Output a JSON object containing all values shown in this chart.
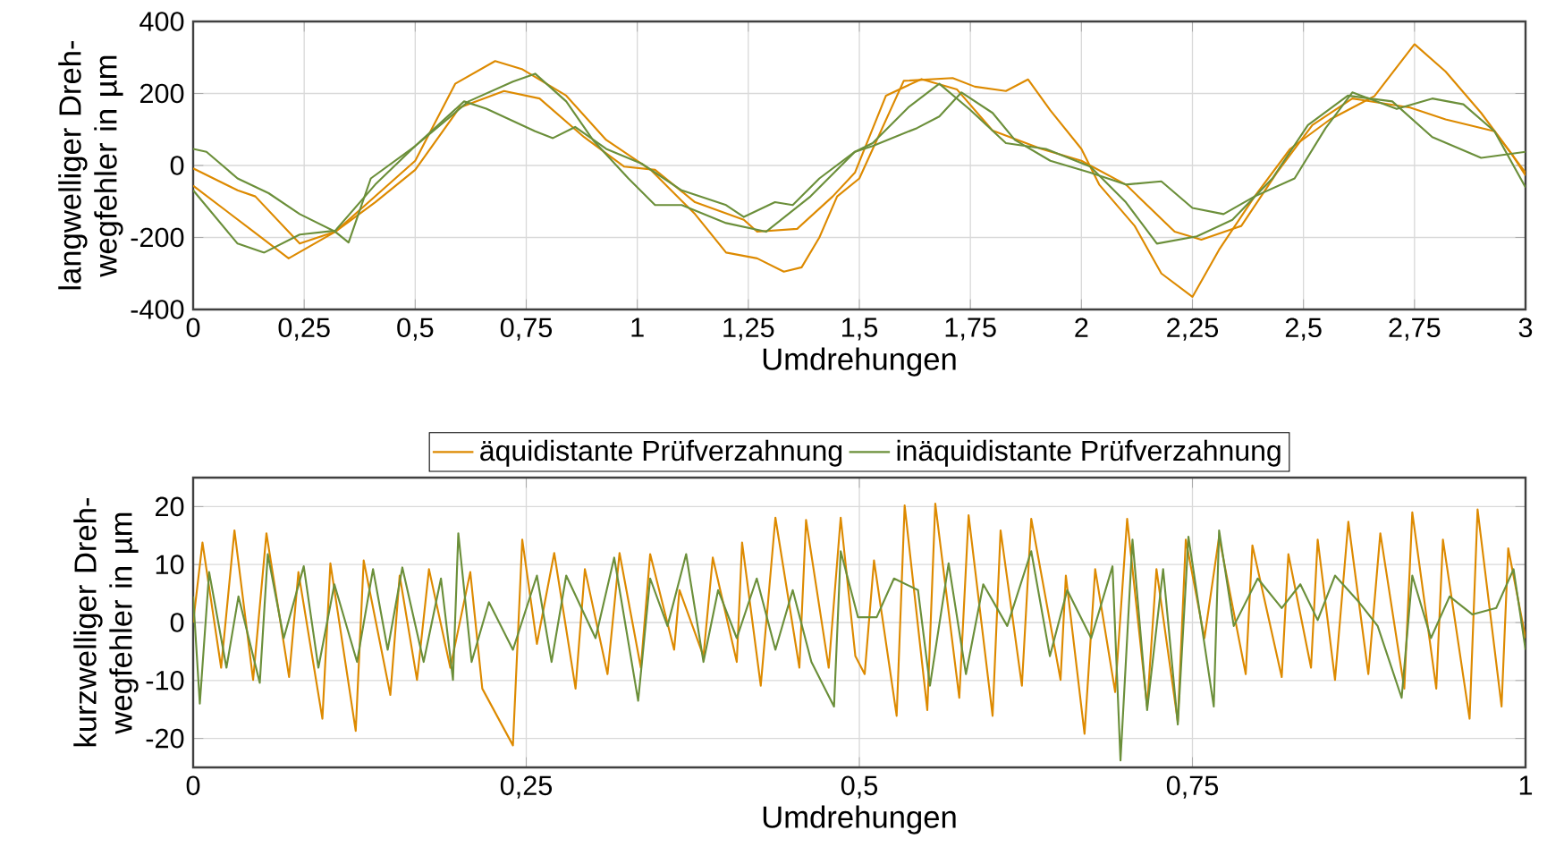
{
  "chart_data": [
    {
      "type": "line",
      "xlabel": "Umdrehungen",
      "ylabel": "langwelliger Dreh-wegfehler in µm",
      "xlim": [
        0,
        3
      ],
      "ylim": [
        -400,
        400
      ],
      "xticks": [
        0,
        {
          "value": 0.25,
          "label": "0,25"
        },
        {
          "value": 0.5,
          "label": "0,5"
        },
        {
          "value": 0.75,
          "label": "0,75"
        },
        1,
        {
          "value": 1.25,
          "label": "1,25"
        },
        {
          "value": 1.5,
          "label": "1,5"
        },
        {
          "value": 1.75,
          "label": "1,75"
        },
        2,
        {
          "value": 2.25,
          "label": "2,25"
        },
        {
          "value": 2.5,
          "label": "2,5"
        },
        {
          "value": 2.75,
          "label": "2,75"
        },
        3
      ],
      "yticks": [
        -400,
        -200,
        0,
        200,
        400
      ],
      "grid": true,
      "legend": false,
      "series": [
        {
          "color": "#dd8a00",
          "x": [
            0,
            0.215,
            0.32,
            0.5,
            0.59,
            0.68,
            0.74,
            0.84,
            0.93,
            1.03,
            1.13,
            1.2,
            1.27,
            1.33,
            1.37,
            1.41,
            1.45,
            1.5,
            1.6,
            1.71,
            1.76,
            1.83,
            1.88,
            1.93,
            2.0,
            2.04,
            2.12,
            2.18,
            2.25,
            2.31,
            2.39,
            2.47,
            2.56,
            2.66,
            2.75,
            2.82,
            2.9,
            2.97,
            3.0
          ],
          "values": [
            -56,
            -258,
            -184,
            13,
            227,
            290,
            268,
            194,
            71,
            -12,
            -135,
            -242,
            -258,
            -295,
            -283,
            -200,
            -86,
            -36,
            235,
            243,
            219,
            207,
            239,
            153,
            46,
            -53,
            -168,
            -300,
            -365,
            -234,
            -86,
            46,
            128,
            193,
            337,
            261,
            146,
            30,
            -28
          ]
        },
        {
          "color": "#dd8a00",
          "x": [
            0,
            0.1,
            0.14,
            0.24,
            0.32,
            0.41,
            0.5,
            0.6,
            0.7,
            0.78,
            0.88,
            0.97,
            1.04,
            1.13,
            1.24,
            1.27,
            1.36,
            1.44,
            1.49,
            1.56,
            1.64,
            1.72,
            1.8,
            1.91,
            2.0,
            2.1,
            2.21,
            2.27,
            2.36,
            2.44,
            2.52,
            2.61,
            2.74,
            2.82,
            2.93,
            3.0
          ],
          "values": [
            -8,
            -69,
            -86,
            -217,
            -184,
            -102,
            -12,
            161,
            207,
            186,
            79,
            -3,
            -12,
            -102,
            -151,
            -184,
            -176,
            -86,
            -20,
            194,
            240,
            211,
            97,
            46,
            13,
            -53,
            -184,
            -206,
            -168,
            -20,
            112,
            186,
            161,
            128,
            95,
            -20
          ]
        },
        {
          "color": "#6b8f3a",
          "x": [
            0,
            0.03,
            0.1,
            0.17,
            0.24,
            0.32,
            0.35,
            0.4,
            0.5,
            0.61,
            0.66,
            0.77,
            0.81,
            0.86,
            0.93,
            1.01,
            1.1,
            1.2,
            1.24,
            1.31,
            1.35,
            1.41,
            1.49,
            1.53,
            1.63,
            1.68,
            1.73,
            1.8,
            1.85,
            1.93,
            2.02,
            2.1,
            2.18,
            2.25,
            2.32,
            2.39,
            2.48,
            2.55,
            2.61,
            2.71,
            2.79,
            2.86,
            2.93,
            3.0
          ],
          "values": [
            46,
            38,
            -36,
            -77,
            -135,
            -184,
            -214,
            -36,
            54,
            178,
            158,
            95,
            76,
            107,
            46,
            5,
            -69,
            -110,
            -143,
            -102,
            -110,
            -36,
            38,
            54,
            104,
            136,
            203,
            146,
            71,
            13,
            -20,
            -53,
            -44,
            -118,
            -135,
            -86,
            -36,
            104,
            203,
            157,
            186,
            170,
            95,
            -61
          ]
        },
        {
          "color": "#6b8f3a",
          "x": [
            0,
            0.1,
            0.16,
            0.24,
            0.32,
            0.41,
            0.5,
            0.62,
            0.72,
            0.77,
            0.84,
            0.9,
            0.98,
            1.04,
            1.1,
            1.2,
            1.29,
            1.39,
            1.49,
            1.53,
            1.61,
            1.68,
            1.75,
            1.83,
            1.92,
            2.02,
            2.1,
            2.17,
            2.26,
            2.34,
            2.43,
            2.51,
            2.6,
            2.7,
            2.79,
            2.9,
            3.0
          ],
          "values": [
            -69,
            -217,
            -242,
            -192,
            -181,
            -53,
            54,
            178,
            233,
            255,
            178,
            71,
            -36,
            -110,
            -110,
            -160,
            -184,
            -86,
            38,
            62,
            161,
            227,
            154,
            62,
            46,
            -3,
            -102,
            -217,
            -197,
            -151,
            -36,
            112,
            194,
            178,
            79,
            21,
            38
          ]
        }
      ]
    },
    {
      "type": "line",
      "xlabel": "Umdrehungen",
      "ylabel": "kurzwelliger Dreh-wegfehler in µm",
      "xlim": [
        0,
        1
      ],
      "ylim": [
        -25,
        25
      ],
      "xticks": [
        0,
        {
          "value": 0.25,
          "label": "0,25"
        },
        {
          "value": 0.5,
          "label": "0,5"
        },
        {
          "value": 0.75,
          "label": "0,75"
        },
        1
      ],
      "yticks": [
        -20,
        -10,
        0,
        10,
        20
      ],
      "grid": true,
      "legend": "top",
      "series": [
        {
          "name": "äquidistante Prüfverzahnung",
          "color": "#dd8a00",
          "x": [
            0,
            0.007,
            0.021,
            0.031,
            0.045,
            0.055,
            0.072,
            0.079,
            0.097,
            0.103,
            0.122,
            0.128,
            0.148,
            0.155,
            0.168,
            0.177,
            0.193,
            0.208,
            0.217,
            0.24,
            0.247,
            0.258,
            0.271,
            0.287,
            0.294,
            0.311,
            0.32,
            0.336,
            0.343,
            0.361,
            0.365,
            0.383,
            0.39,
            0.408,
            0.412,
            0.426,
            0.437,
            0.455,
            0.46,
            0.477,
            0.486,
            0.497,
            0.504,
            0.511,
            0.528,
            0.534,
            0.551,
            0.557,
            0.575,
            0.582,
            0.6,
            0.606,
            0.622,
            0.629,
            0.651,
            0.655,
            0.669,
            0.677,
            0.692,
            0.701,
            0.716,
            0.723,
            0.739,
            0.745,
            0.759,
            0.77,
            0.79,
            0.795,
            0.817,
            0.822,
            0.839,
            0.844,
            0.857,
            0.867,
            0.882,
            0.891,
            0.909,
            0.915,
            0.933,
            0.938,
            0.958,
            0.964,
            0.982,
            0.987,
            1.0
          ],
          "values": [
            0,
            13.8,
            -7.8,
            15.9,
            -9.9,
            15.4,
            -9.4,
            8.7,
            -16.6,
            10.2,
            -18.7,
            10.7,
            -12.5,
            8.1,
            -9.9,
            9.2,
            -7.8,
            8.7,
            -11.4,
            -21.2,
            14.3,
            -3.7,
            12,
            -11.4,
            9.2,
            -8.9,
            12,
            -7.8,
            11.8,
            -4.7,
            5.6,
            -5.8,
            11.2,
            -6.8,
            13.8,
            -10.9,
            18.1,
            -7.8,
            17.7,
            -7.8,
            18.1,
            -5.8,
            -8.9,
            10.7,
            -16.1,
            20.2,
            -15.1,
            20.5,
            -13,
            18.5,
            -16.1,
            15.9,
            -10.9,
            17.9,
            -9.9,
            8.1,
            -19.2,
            9.2,
            -12,
            17.9,
            -14.5,
            9.2,
            -17.1,
            14.3,
            -2.7,
            14.8,
            -8.9,
            13.3,
            -9.4,
            11.8,
            -7.8,
            14.3,
            -9.9,
            17.4,
            -8.9,
            15.4,
            -11.4,
            19,
            -11.4,
            14.3,
            -16.6,
            19.5,
            -14.5,
            12.8,
            -2.7
          ]
        },
        {
          "name": "inäquidistante Prüfverzahnung",
          "color": "#6b8f3a",
          "x": [
            0,
            0.005,
            0.012,
            0.025,
            0.034,
            0.05,
            0.056,
            0.068,
            0.083,
            0.094,
            0.106,
            0.123,
            0.135,
            0.146,
            0.157,
            0.173,
            0.186,
            0.195,
            0.199,
            0.209,
            0.222,
            0.24,
            0.258,
            0.269,
            0.28,
            0.302,
            0.316,
            0.334,
            0.343,
            0.356,
            0.37,
            0.383,
            0.394,
            0.408,
            0.423,
            0.437,
            0.45,
            0.464,
            0.481,
            0.486,
            0.499,
            0.513,
            0.526,
            0.544,
            0.553,
            0.567,
            0.58,
            0.593,
            0.611,
            0.629,
            0.643,
            0.656,
            0.674,
            0.69,
            0.696,
            0.705,
            0.716,
            0.728,
            0.739,
            0.747,
            0.766,
            0.77,
            0.781,
            0.799,
            0.817,
            0.831,
            0.844,
            0.857,
            0.875,
            0.889,
            0.907,
            0.915,
            0.929,
            0.943,
            0.96,
            0.978,
            0.991,
            1.0
          ],
          "values": [
            4.5,
            -14,
            8.7,
            -7.8,
            4.5,
            -10.4,
            11.8,
            -2.7,
            9.7,
            -7.8,
            6.6,
            -6.8,
            9.2,
            -4.7,
            9.5,
            -6.8,
            7.6,
            -9.9,
            15.4,
            -6.8,
            3.5,
            -4.7,
            8.1,
            -6.8,
            8.1,
            -2.7,
            11.2,
            -13.5,
            7.6,
            -0.6,
            11.8,
            -6.8,
            5.6,
            -2.7,
            7.6,
            -4.7,
            5.6,
            -6.8,
            -14.5,
            12.3,
            0.9,
            0.9,
            7.6,
            5.6,
            -10.9,
            10.2,
            -8.9,
            6.6,
            -0.6,
            12.3,
            -5.8,
            5.6,
            -2.7,
            9.7,
            -23.8,
            14.3,
            -15.1,
            9.2,
            -17.6,
            14.8,
            -14.5,
            15.9,
            -0.6,
            7.6,
            2.5,
            6.6,
            0.4,
            8.1,
            3.5,
            -0.6,
            -13,
            8.1,
            -2.7,
            4.5,
            1.4,
            2.5,
            9.2,
            -4.7
          ]
        }
      ]
    }
  ]
}
